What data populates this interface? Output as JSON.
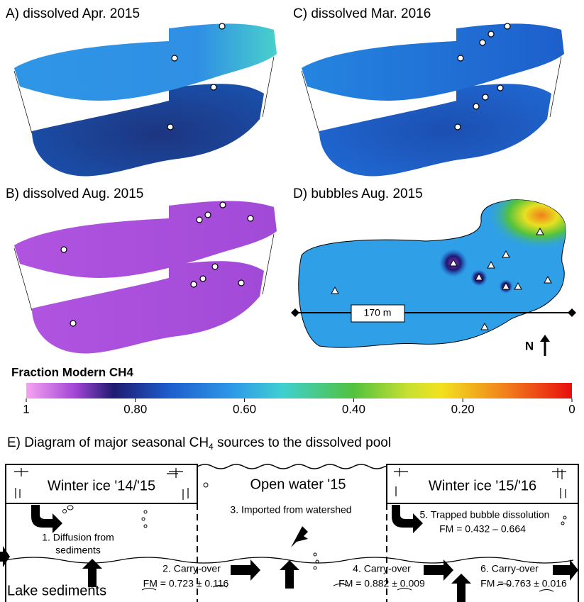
{
  "panels": [
    {
      "label": "A) dissolved Apr. 2015"
    },
    {
      "label": "C) dissolved Mar. 2016"
    },
    {
      "label": "B) dissolved Aug. 2015"
    },
    {
      "label": "D) bubbles Aug. 2015"
    }
  ],
  "scale_bar": "170 m",
  "north": "N",
  "colorbar": {
    "title": "Fraction Modern CH4",
    "lim": [
      1,
      0
    ],
    "ticks": [
      1,
      {
        "value": 0.8,
        "label": "0.80"
      },
      {
        "value": 0.6,
        "label": "0.60"
      },
      {
        "value": 0.4,
        "label": "0.40"
      },
      {
        "value": 0.2,
        "label": "0.20"
      },
      0
    ]
  },
  "diagram": {
    "title": {
      "text": "E) Diagram of major seasonal CH",
      "subscript": "4",
      "suffix": " sources to the dissolved pool"
    },
    "winter1": "Winter ice '14/'15",
    "open_water": "Open water '15",
    "winter2": "Winter ice '15/'16",
    "source1": [
      "1. Diffusion from",
      "sediments"
    ],
    "source2": {
      "label": "2. Carry-over",
      "fm": "FM = 0.723 ± 0.116"
    },
    "source3": "3. Imported from watershed",
    "source4": {
      "label": "4. Carry-over",
      "fm": "FM = 0.882 ± 0.009"
    },
    "source5": {
      "label": "5. Trapped bubble dissolution",
      "fm": "FM = 0.432 – 0.664"
    },
    "source6": {
      "label": "6. Carry-over",
      "fm": "FM = 0.763 ± 0.016"
    },
    "sediments": "Lake sediments"
  }
}
